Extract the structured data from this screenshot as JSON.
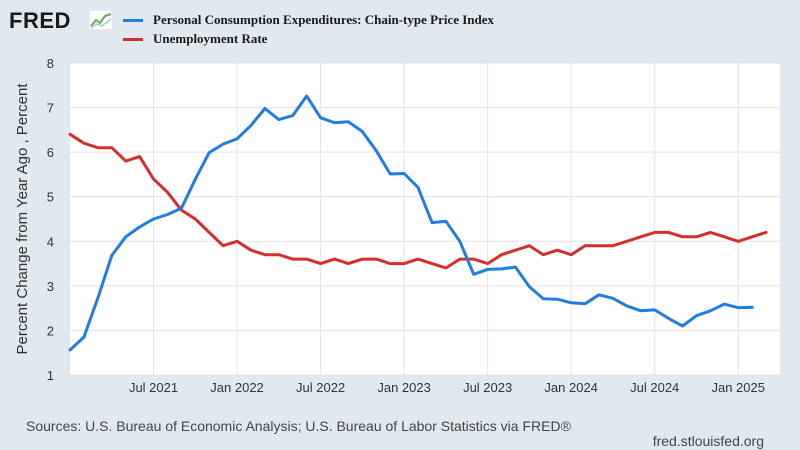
{
  "header": {
    "logo_text": "FRED",
    "logo_graph_icon": "line-chart-icon"
  },
  "legend": [
    {
      "label": "Personal Consumption Expenditures: Chain-type Price Index",
      "color": "#1f7ee0"
    },
    {
      "label": "Unemployment Rate",
      "color": "#d32f2f"
    }
  ],
  "footer": {
    "source": "Sources: U.S. Bureau of Economic Analysis; U.S. Bureau of Labor Statistics via FRED®",
    "credit": "fred.stlouisfed.org"
  },
  "chart_data": {
    "type": "line",
    "ylabel": "Percent Change from Year Ago , Percent",
    "ylim": [
      1,
      8
    ],
    "yticks": [
      1,
      2,
      3,
      4,
      5,
      6,
      7,
      8
    ],
    "xlim": [
      "2021-01",
      "2025-04"
    ],
    "xticks": [
      {
        "label": "Jul 2021",
        "date": "2021-07"
      },
      {
        "label": "Jan 2022",
        "date": "2022-01"
      },
      {
        "label": "Jul 2022",
        "date": "2022-07"
      },
      {
        "label": "Jan 2023",
        "date": "2023-01"
      },
      {
        "label": "Jul 2023",
        "date": "2023-07"
      },
      {
        "label": "Jan 2024",
        "date": "2024-01"
      },
      {
        "label": "Jul 2024",
        "date": "2024-07"
      },
      {
        "label": "Jan 2025",
        "date": "2025-01"
      }
    ],
    "grid": true,
    "series": [
      {
        "name": "Personal Consumption Expenditures: Chain-type Price Index",
        "color": "#1f7ee0",
        "start": "2021-01",
        "values": [
          1.56,
          1.85,
          2.72,
          3.68,
          4.1,
          4.32,
          4.5,
          4.6,
          4.74,
          5.39,
          5.99,
          6.18,
          6.3,
          6.6,
          6.98,
          6.73,
          6.82,
          7.26,
          6.77,
          6.66,
          6.68,
          6.46,
          6.03,
          5.51,
          5.52,
          5.21,
          4.42,
          4.45,
          4.0,
          3.26,
          3.37,
          3.38,
          3.42,
          2.98,
          2.71,
          2.7,
          2.62,
          2.6,
          2.8,
          2.72,
          2.55,
          2.44,
          2.46,
          2.27,
          2.1,
          2.33,
          2.44,
          2.59,
          2.51,
          2.52
        ]
      },
      {
        "name": "Unemployment Rate",
        "color": "#d32f2f",
        "start": "2021-01",
        "values": [
          6.4,
          6.2,
          6.1,
          6.1,
          5.8,
          5.9,
          5.4,
          5.1,
          4.7,
          4.5,
          4.2,
          3.9,
          4.0,
          3.8,
          3.7,
          3.7,
          3.6,
          3.6,
          3.5,
          3.6,
          3.5,
          3.6,
          3.6,
          3.5,
          3.5,
          3.6,
          3.5,
          3.4,
          3.6,
          3.6,
          3.5,
          3.7,
          3.8,
          3.9,
          3.7,
          3.8,
          3.7,
          3.9,
          3.9,
          3.9,
          4.0,
          4.1,
          4.2,
          4.2,
          4.1,
          4.1,
          4.2,
          4.1,
          4.0,
          4.1,
          4.2
        ]
      }
    ]
  }
}
